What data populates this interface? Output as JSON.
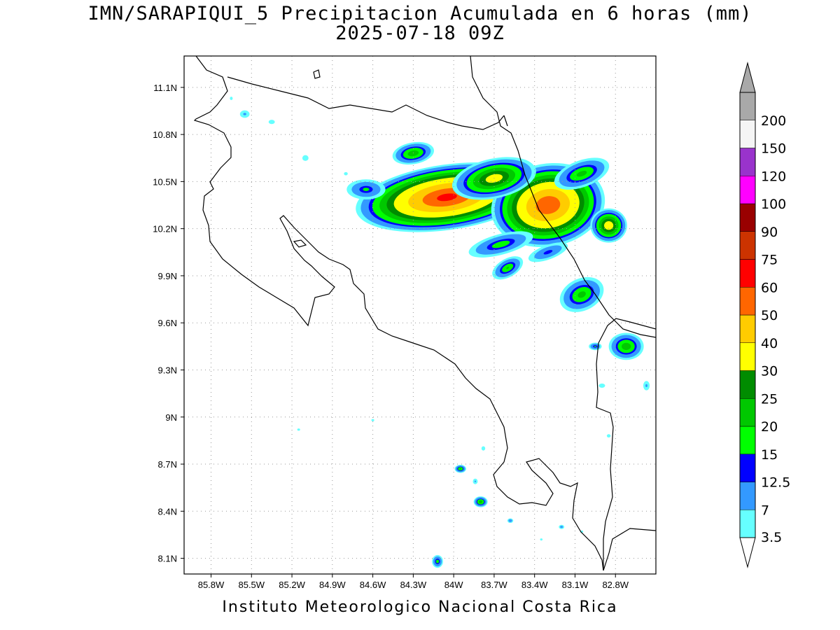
{
  "title": {
    "line1": "IMN/SARAPIQUI_5 Precipitacion Acumulada en 6 horas (mm)",
    "line2": "2025-07-18 09Z"
  },
  "credit": "Instituto Meteorologico Nacional Costa Rica",
  "map": {
    "type": "precipitation-contour-map",
    "lon_range": [
      -86.0,
      -82.5
    ],
    "lat_range": [
      8.0,
      11.3
    ],
    "grid": true,
    "lon_ticks": [
      {
        "value": -85.8,
        "label": "85.8W"
      },
      {
        "value": -85.5,
        "label": "85.5W"
      },
      {
        "value": -85.2,
        "label": "85.2W"
      },
      {
        "value": -84.9,
        "label": "84.9W"
      },
      {
        "value": -84.6,
        "label": "84.6W"
      },
      {
        "value": -84.3,
        "label": "84.3W"
      },
      {
        "value": -84.0,
        "label": "84W"
      },
      {
        "value": -83.7,
        "label": "83.7W"
      },
      {
        "value": -83.4,
        "label": "83.4W"
      },
      {
        "value": -83.1,
        "label": "83.1W"
      },
      {
        "value": -82.8,
        "label": "82.8W"
      }
    ],
    "lat_ticks": [
      {
        "value": 11.1,
        "label": "11.1N"
      },
      {
        "value": 10.8,
        "label": "10.8N"
      },
      {
        "value": 10.5,
        "label": "10.5N"
      },
      {
        "value": 10.2,
        "label": "10.2N"
      },
      {
        "value": 9.9,
        "label": "9.9N"
      },
      {
        "value": 9.6,
        "label": "9.6N"
      },
      {
        "value": 9.3,
        "label": "9.3N"
      },
      {
        "value": 9.0,
        "label": "9N"
      },
      {
        "value": 8.7,
        "label": "8.7N"
      },
      {
        "value": 8.4,
        "label": "8.4N"
      },
      {
        "value": 8.1,
        "label": "8.1N"
      }
    ]
  },
  "colorbar": {
    "levels": [
      {
        "label": "3.5",
        "color": "#66ffff"
      },
      {
        "label": "7",
        "color": "#3399ff"
      },
      {
        "label": "12.5",
        "color": "#0000ff"
      },
      {
        "label": "15",
        "color": "#00ff00"
      },
      {
        "label": "20",
        "color": "#00c800"
      },
      {
        "label": "25",
        "color": "#008c00"
      },
      {
        "label": "30",
        "color": "#ffff00"
      },
      {
        "label": "40",
        "color": "#ffcc00"
      },
      {
        "label": "50",
        "color": "#ff6600"
      },
      {
        "label": "60",
        "color": "#ff0000"
      },
      {
        "label": "75",
        "color": "#cc3300"
      },
      {
        "label": "90",
        "color": "#990000"
      },
      {
        "label": "100",
        "color": "#ff00ff"
      },
      {
        "label": "120",
        "color": "#9933cc"
      },
      {
        "label": "150",
        "color": "#f5f5f5"
      },
      {
        "label": "200",
        "color": "#a9a9a9"
      }
    ],
    "top_arrow_color": "#a9a9a9",
    "bottom_arrow_color": "#ffffff"
  },
  "precip_cells": [
    {
      "lon": -84.05,
      "lat": 10.4,
      "rx": 0.72,
      "ry": 0.22,
      "rot": -8,
      "max": 62
    },
    {
      "lon": -83.3,
      "lat": 10.35,
      "rx": 0.45,
      "ry": 0.28,
      "rot": -10,
      "max": 58
    },
    {
      "lon": -83.7,
      "lat": 10.52,
      "rx": 0.35,
      "ry": 0.14,
      "rot": -12,
      "max": 34
    },
    {
      "lon": -84.3,
      "lat": 10.68,
      "rx": 0.18,
      "ry": 0.08,
      "rot": -10,
      "max": 24
    },
    {
      "lon": -84.65,
      "lat": 10.45,
      "rx": 0.18,
      "ry": 0.08,
      "rot": 0,
      "max": 16
    },
    {
      "lon": -83.05,
      "lat": 10.55,
      "rx": 0.25,
      "ry": 0.1,
      "rot": -20,
      "max": 22
    },
    {
      "lon": -82.85,
      "lat": 10.22,
      "rx": 0.15,
      "ry": 0.12,
      "rot": 0,
      "max": 36
    },
    {
      "lon": -83.65,
      "lat": 10.1,
      "rx": 0.3,
      "ry": 0.08,
      "rot": -15,
      "max": 18
    },
    {
      "lon": -83.3,
      "lat": 10.05,
      "rx": 0.2,
      "ry": 0.06,
      "rot": -20,
      "max": 14
    },
    {
      "lon": -83.6,
      "lat": 9.95,
      "rx": 0.15,
      "ry": 0.07,
      "rot": -30,
      "max": 20
    },
    {
      "lon": -83.05,
      "lat": 9.78,
      "rx": 0.2,
      "ry": 0.12,
      "rot": -25,
      "max": 22
    },
    {
      "lon": -82.72,
      "lat": 9.45,
      "rx": 0.15,
      "ry": 0.1,
      "rot": 0,
      "max": 24
    },
    {
      "lon": -82.95,
      "lat": 9.45,
      "rx": 0.06,
      "ry": 0.03,
      "rot": 0,
      "max": 16
    },
    {
      "lon": -82.57,
      "lat": 9.2,
      "rx": 0.04,
      "ry": 0.05,
      "rot": 0,
      "max": 8
    },
    {
      "lon": -83.8,
      "lat": 8.46,
      "rx": 0.06,
      "ry": 0.04,
      "rot": 0,
      "max": 24
    },
    {
      "lon": -83.95,
      "lat": 8.67,
      "rx": 0.05,
      "ry": 0.03,
      "rot": 0,
      "max": 22
    },
    {
      "lon": -84.12,
      "lat": 8.08,
      "rx": 0.05,
      "ry": 0.05,
      "rot": 0,
      "max": 18
    },
    {
      "lon": -83.58,
      "lat": 8.34,
      "rx": 0.03,
      "ry": 0.02,
      "rot": 0,
      "max": 12
    },
    {
      "lon": -83.2,
      "lat": 8.3,
      "rx": 0.03,
      "ry": 0.02,
      "rot": 0,
      "max": 10
    },
    {
      "lon": -84.1,
      "lat": 9.3,
      "rx": 0.0,
      "ry": 0.0,
      "rot": 0,
      "max": 0
    },
    {
      "lon": -85.55,
      "lat": 10.93,
      "rx": 0.06,
      "ry": 0.04,
      "rot": 0,
      "max": 8
    },
    {
      "lon": -85.35,
      "lat": 10.88,
      "rx": 0.05,
      "ry": 0.03,
      "rot": 0,
      "max": 6
    },
    {
      "lon": -85.1,
      "lat": 10.65,
      "rx": 0.05,
      "ry": 0.04,
      "rot": 0,
      "max": 6
    },
    {
      "lon": -84.8,
      "lat": 10.55,
      "rx": 0.04,
      "ry": 0.03,
      "rot": 0,
      "max": 5
    },
    {
      "lon": -85.65,
      "lat": 11.03,
      "rx": 0.03,
      "ry": 0.03,
      "rot": 0,
      "max": 5
    },
    {
      "lon": -84.6,
      "lat": 8.98,
      "rx": 0.03,
      "ry": 0.02,
      "rot": 0,
      "max": 5
    },
    {
      "lon": -85.15,
      "lat": 8.92,
      "rx": 0.03,
      "ry": 0.02,
      "rot": 0,
      "max": 5
    },
    {
      "lon": -83.78,
      "lat": 8.8,
      "rx": 0.03,
      "ry": 0.03,
      "rot": 0,
      "max": 6
    },
    {
      "lon": -83.84,
      "lat": 8.59,
      "rx": 0.03,
      "ry": 0.03,
      "rot": 0,
      "max": 8
    },
    {
      "lon": -83.05,
      "lat": 8.27,
      "rx": 0.03,
      "ry": 0.02,
      "rot": 0,
      "max": 5
    },
    {
      "lon": -83.35,
      "lat": 8.22,
      "rx": 0.02,
      "ry": 0.02,
      "rot": 0,
      "max": 5
    },
    {
      "lon": -82.85,
      "lat": 8.88,
      "rx": 0.04,
      "ry": 0.03,
      "rot": 0,
      "max": 5
    },
    {
      "lon": -82.9,
      "lat": 9.2,
      "rx": 0.05,
      "ry": 0.03,
      "rot": 0,
      "max": 6
    }
  ]
}
